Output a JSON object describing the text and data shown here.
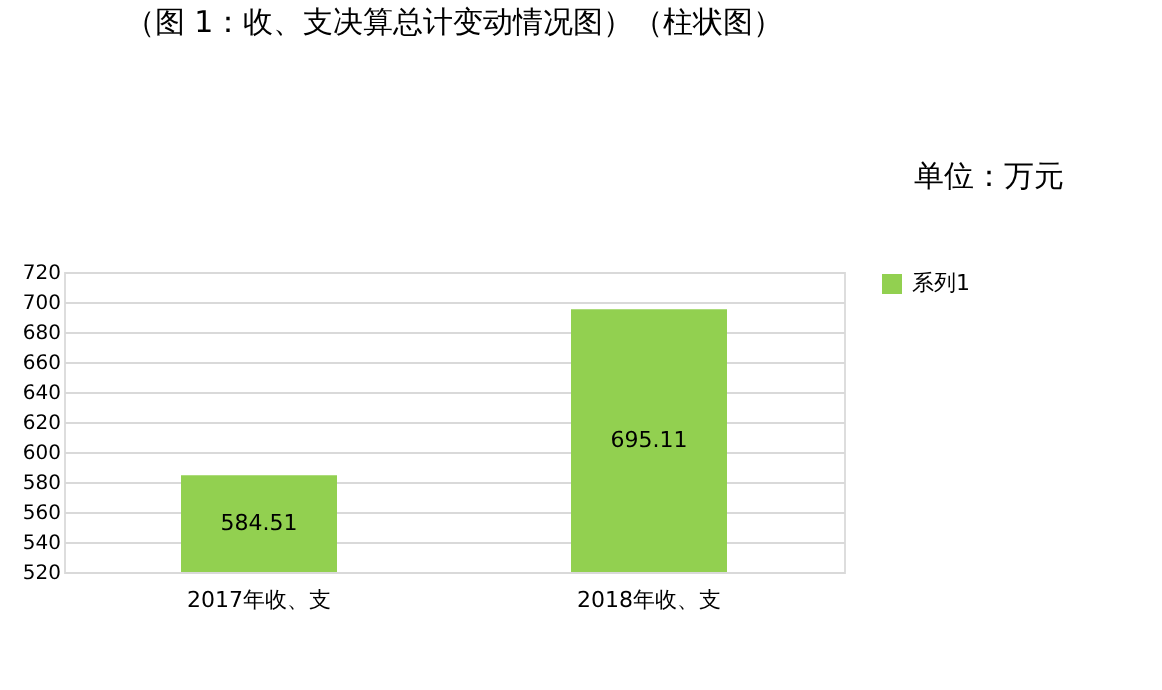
{
  "chart_data": {
    "type": "bar",
    "title": "（图 1：收、支决算总计变动情况图）（柱状图）",
    "subtitle": "单位：万元",
    "categories": [
      "2017年收、支",
      "2018年收、支"
    ],
    "series": [
      {
        "name": "系列1",
        "color": "#92d050",
        "values": [
          584.51,
          695.11
        ]
      }
    ],
    "ylim": [
      520,
      720
    ],
    "yticks": [
      520,
      540,
      560,
      580,
      600,
      620,
      640,
      660,
      680,
      700,
      720
    ],
    "grid": "y",
    "legend": "right",
    "data_labels": true
  }
}
